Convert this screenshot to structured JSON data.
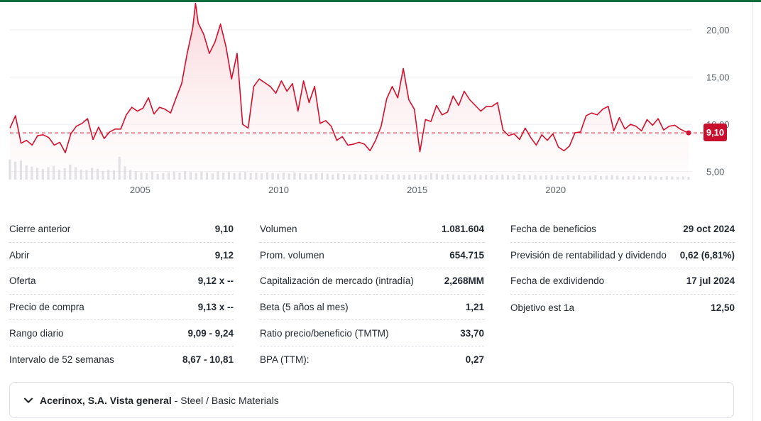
{
  "chart_data": {
    "type": "line",
    "x_ticks": [
      "2005",
      "2010",
      "2015",
      "2020"
    ],
    "y_ticks": [
      "5,00",
      "10,00",
      "15,00",
      "20,00"
    ],
    "x_range": [
      2000.3,
      2024.8
    ],
    "ylim": [
      4.0,
      23.0
    ],
    "reference_price": 9.1,
    "current_price_label": "9,10",
    "line_color": "#d50f2c",
    "series": [
      {
        "x": [
          2000.3,
          2000.5,
          2000.7,
          2000.9,
          2001.1,
          2001.3,
          2001.5,
          2001.7,
          2001.9,
          2002.1,
          2002.3,
          2002.5,
          2002.7,
          2002.9,
          2003.1,
          2003.3,
          2003.5,
          2003.7,
          2003.9,
          2004.1,
          2004.3,
          2004.5,
          2004.7,
          2004.9,
          2005.1,
          2005.3,
          2005.5,
          2005.7,
          2005.9,
          2006.1,
          2006.3,
          2006.5,
          2006.7,
          2006.9,
          2007.0,
          2007.1,
          2007.3,
          2007.5,
          2007.7,
          2007.9,
          2008.1,
          2008.3,
          2008.5,
          2008.7,
          2008.9,
          2009.1,
          2009.3,
          2009.5,
          2009.7,
          2009.9,
          2010.1,
          2010.3,
          2010.5,
          2010.7,
          2010.9,
          2011.1,
          2011.3,
          2011.5,
          2011.7,
          2011.9,
          2012.1,
          2012.3,
          2012.5,
          2012.7,
          2012.9,
          2013.1,
          2013.3,
          2013.5,
          2013.7,
          2013.9,
          2014.1,
          2014.3,
          2014.5,
          2014.7,
          2014.9,
          2015.1,
          2015.3,
          2015.5,
          2015.7,
          2015.9,
          2016.1,
          2016.3,
          2016.5,
          2016.7,
          2016.9,
          2017.1,
          2017.3,
          2017.5,
          2017.7,
          2017.9,
          2018.1,
          2018.3,
          2018.5,
          2018.7,
          2018.9,
          2019.1,
          2019.3,
          2019.5,
          2019.7,
          2019.9,
          2020.1,
          2020.3,
          2020.5,
          2020.7,
          2020.9,
          2021.1,
          2021.3,
          2021.5,
          2021.7,
          2021.9,
          2022.1,
          2022.3,
          2022.5,
          2022.7,
          2022.9,
          2023.1,
          2023.3,
          2023.5,
          2023.7,
          2023.9,
          2024.1,
          2024.3,
          2024.5,
          2024.7,
          2024.8
        ],
        "y": [
          9.6,
          10.9,
          8.0,
          8.3,
          7.8,
          8.8,
          8.9,
          8.6,
          7.8,
          8.1,
          7.0,
          9.0,
          9.8,
          10.1,
          10.6,
          8.4,
          9.7,
          8.5,
          9.2,
          9.5,
          9.5,
          11.0,
          11.8,
          11.4,
          11.7,
          12.8,
          11.1,
          11.8,
          11.6,
          11.2,
          12.8,
          14.3,
          17.5,
          20.2,
          22.8,
          20.7,
          19.5,
          17.5,
          18.7,
          20.6,
          18.2,
          14.8,
          17.5,
          10.0,
          9.6,
          14.0,
          14.8,
          14.4,
          14.0,
          13.3,
          14.6,
          13.5,
          14.3,
          11.4,
          14.6,
          12.3,
          14.0,
          10.1,
          10.4,
          9.8,
          8.3,
          8.7,
          7.8,
          7.9,
          8.1,
          7.9,
          7.2,
          8.3,
          9.8,
          12.7,
          14.0,
          12.8,
          15.9,
          12.6,
          11.6,
          7.1,
          10.5,
          10.3,
          12.0,
          11.0,
          11.3,
          13.0,
          12.0,
          13.5,
          12.6,
          12.0,
          11.4,
          11.9,
          11.9,
          12.3,
          9.4,
          8.8,
          9.0,
          8.4,
          9.6,
          8.6,
          7.8,
          8.9,
          8.3,
          9.0,
          7.6,
          7.2,
          7.7,
          9.1,
          9.2,
          10.9,
          11.2,
          11.0,
          11.6,
          11.9,
          9.3,
          10.7,
          9.5,
          10.0,
          9.8,
          9.3,
          10.5,
          9.9,
          10.6,
          9.4,
          9.8,
          9.9,
          9.5,
          9.2,
          9.1
        ]
      }
    ],
    "volume": [
      0.62,
      0.55,
      0.58,
      0.44,
      0.4,
      0.36,
      0.33,
      0.38,
      0.42,
      0.3,
      0.35,
      0.46,
      0.38,
      0.31,
      0.29,
      0.36,
      0.33,
      0.27,
      0.3,
      0.28,
      0.7,
      0.41,
      0.3,
      0.26,
      0.22,
      0.2,
      0.25,
      0.18,
      0.2,
      0.22,
      0.24,
      0.21,
      0.26,
      0.23,
      0.2,
      0.24,
      0.22,
      0.19,
      0.25,
      0.21,
      0.23,
      0.2,
      0.22,
      0.24,
      0.2,
      0.21,
      0.19,
      0.22,
      0.2,
      0.18,
      0.21,
      0.19,
      0.22,
      0.2,
      0.18,
      0.17,
      0.19,
      0.2,
      0.18,
      0.16,
      0.19,
      0.17,
      0.15,
      0.18,
      0.16,
      0.17,
      0.15,
      0.16,
      0.14,
      0.17,
      0.15,
      0.16,
      0.14,
      0.15,
      0.17,
      0.16,
      0.14,
      0.2,
      0.18,
      0.15,
      0.17,
      0.16,
      0.14,
      0.15,
      0.13,
      0.16,
      0.14,
      0.15,
      0.13,
      0.14,
      0.16,
      0.14,
      0.12,
      0.18,
      0.14,
      0.13,
      0.14,
      0.12,
      0.13,
      0.14,
      0.12,
      0.11,
      0.13,
      0.12,
      0.14,
      0.11,
      0.12,
      0.13,
      0.11,
      0.12,
      0.14,
      0.12,
      0.1,
      0.11,
      0.12,
      0.1,
      0.11,
      0.12,
      0.1,
      0.09,
      0.11,
      0.1,
      0.09,
      0.1,
      0.09
    ]
  },
  "stats": {
    "col1": [
      {
        "label": "Cierre anterior",
        "value": "9,10"
      },
      {
        "label": "Abrir",
        "value": "9,12"
      },
      {
        "label": "Oferta",
        "value": "9,12 x --"
      },
      {
        "label": "Precio de compra",
        "value": "9,13 x --"
      },
      {
        "label": "Rango diario",
        "value": "9,09 - 9,24"
      },
      {
        "label": "Intervalo de 52 semanas",
        "value": "8,67 - 10,81"
      }
    ],
    "col2": [
      {
        "label": "Volumen",
        "value": "1.081.604"
      },
      {
        "label": "Prom. volumen",
        "value": "654.715"
      },
      {
        "label": "Capitalización de mercado (intradía)",
        "value": "2,268MM"
      },
      {
        "label": "Beta (5 años al mes)",
        "value": "1,21"
      },
      {
        "label": "Ratio precio/beneficio (TMTM)",
        "value": "33,70"
      },
      {
        "label": "BPA (TTM):",
        "value": "0,27"
      }
    ],
    "col3": [
      {
        "label": "Fecha de beneficios",
        "value": "29 oct 2024"
      },
      {
        "label": "Previsión de rentabilidad y dividendo",
        "value": "0,62 (6,81%)"
      },
      {
        "label": "Fecha de exdividendo",
        "value": "17 jul 2024"
      },
      {
        "label": "Objetivo est 1a",
        "value": "12,50"
      }
    ]
  },
  "overview": {
    "name": "Acerinox, S.A. Vista general",
    "sector": "- Steel / Basic Materials",
    "icon": "chevron-down-icon"
  }
}
